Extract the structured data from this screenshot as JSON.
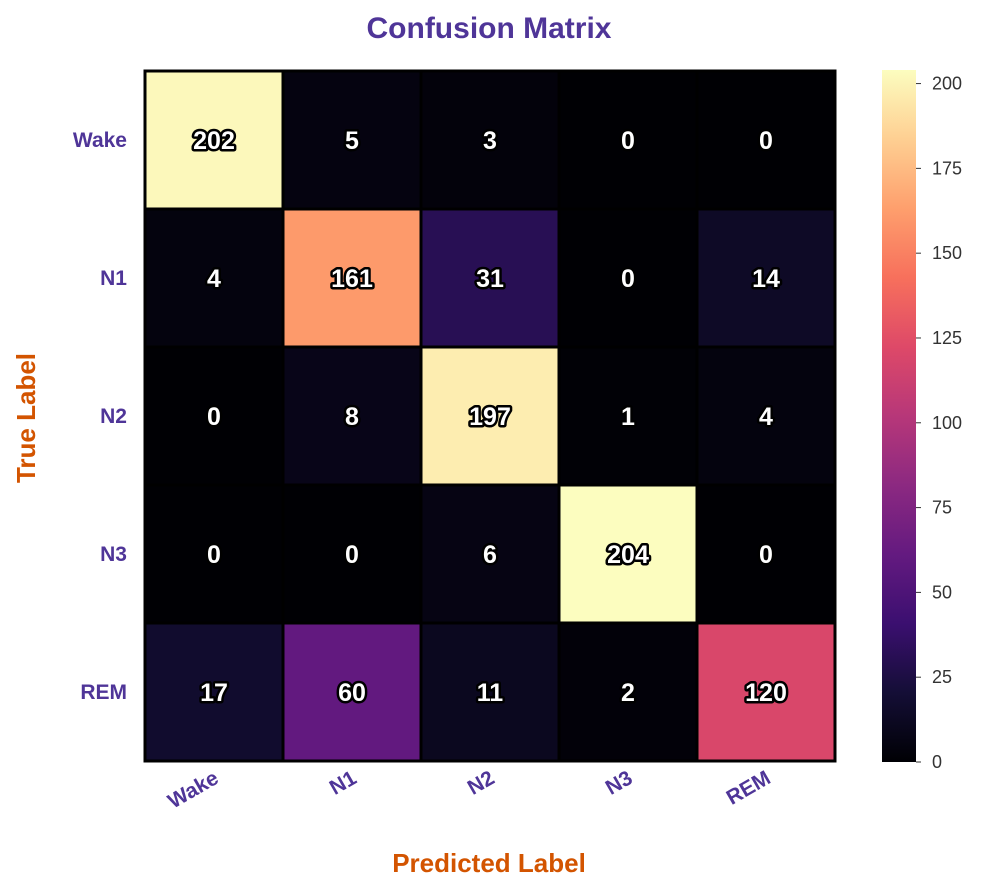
{
  "chart_data": {
    "type": "heatmap",
    "title": "Confusion Matrix",
    "xlabel": "Predicted Label",
    "ylabel": "True Label",
    "x_categories": [
      "Wake",
      "N1",
      "N2",
      "N3",
      "REM"
    ],
    "y_categories": [
      "Wake",
      "N1",
      "N2",
      "N3",
      "REM"
    ],
    "values": [
      [
        202,
        5,
        3,
        0,
        0
      ],
      [
        4,
        161,
        31,
        0,
        14
      ],
      [
        0,
        8,
        197,
        1,
        4
      ],
      [
        0,
        0,
        6,
        204,
        0
      ],
      [
        17,
        60,
        11,
        2,
        120
      ]
    ],
    "colormap": "magma",
    "vmin": 0,
    "vmax": 204,
    "colorbar_ticks": [
      0,
      25,
      50,
      75,
      100,
      125,
      150,
      175,
      200
    ],
    "annotation_color": "#ffffff",
    "colors": {
      "title": "#4f3598",
      "axis_label": "#d35400",
      "tick_label": "#4f3598"
    }
  }
}
